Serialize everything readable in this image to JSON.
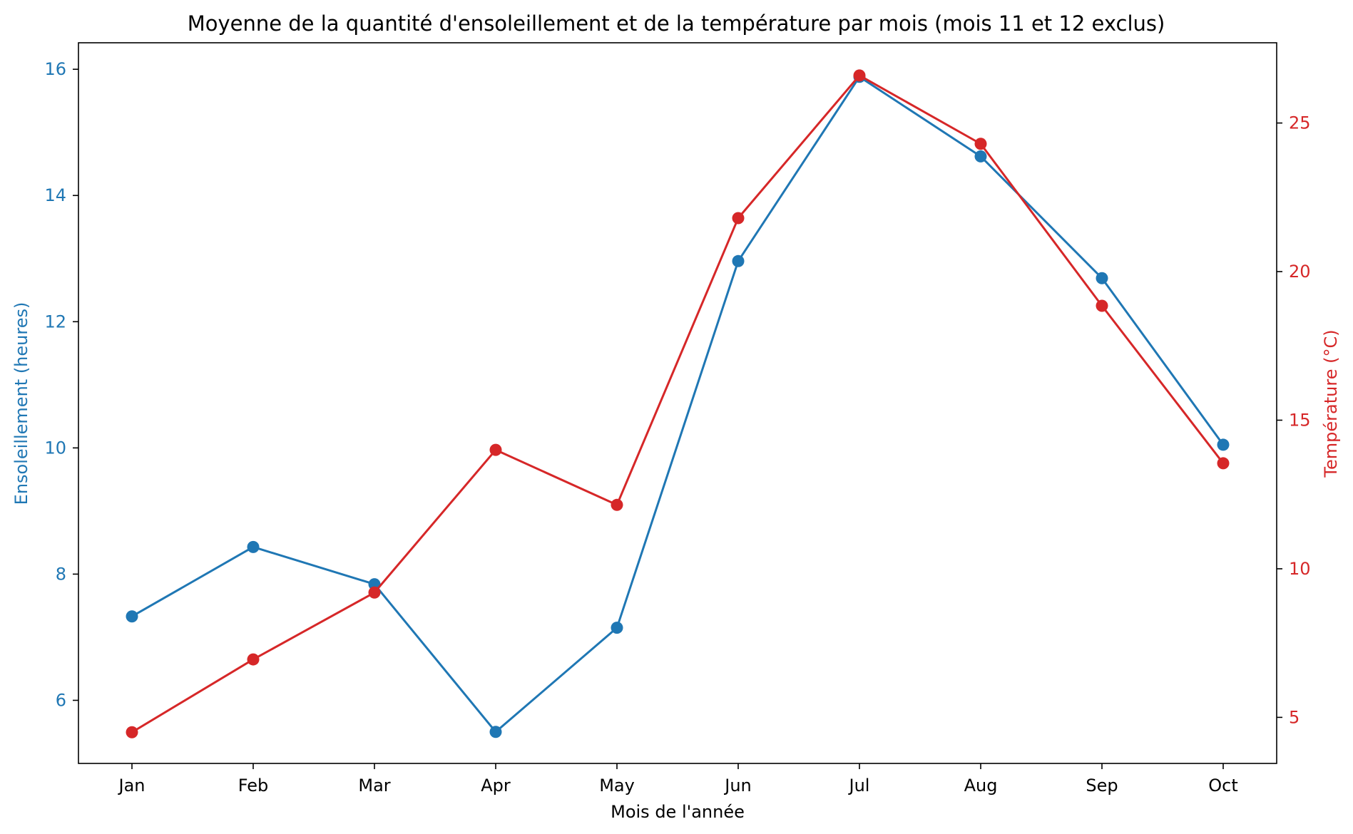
{
  "chart_data": {
    "type": "line",
    "title": "Moyenne de la quantité d'ensoleillement et de la température par mois (mois 11 et 12 exclus)",
    "xlabel": "Mois de l'année",
    "categories": [
      "Jan",
      "Feb",
      "Mar",
      "Apr",
      "May",
      "Jun",
      "Jul",
      "Aug",
      "Sep",
      "Oct"
    ],
    "grid": false,
    "series": [
      {
        "axis": "left",
        "color": "#1f77b4",
        "marker": "circle",
        "values": [
          7.33,
          8.43,
          7.84,
          5.5,
          7.15,
          12.96,
          15.88,
          14.62,
          12.69,
          10.05
        ]
      },
      {
        "axis": "right",
        "color": "#d62728",
        "marker": "circle",
        "values": [
          4.5,
          6.95,
          9.2,
          14.0,
          12.15,
          21.8,
          26.6,
          24.3,
          18.85,
          13.55
        ]
      }
    ],
    "y_left": {
      "label": "Ensoleillement (heures)",
      "color": "#1f77b4",
      "ticks": [
        6,
        8,
        10,
        12,
        14,
        16
      ],
      "lim": [
        5.0,
        16.42
      ]
    },
    "y_right": {
      "label": "Température (°C)",
      "color": "#d62728",
      "ticks": [
        5,
        10,
        15,
        20,
        25
      ],
      "lim": [
        3.45,
        27.7
      ]
    }
  }
}
